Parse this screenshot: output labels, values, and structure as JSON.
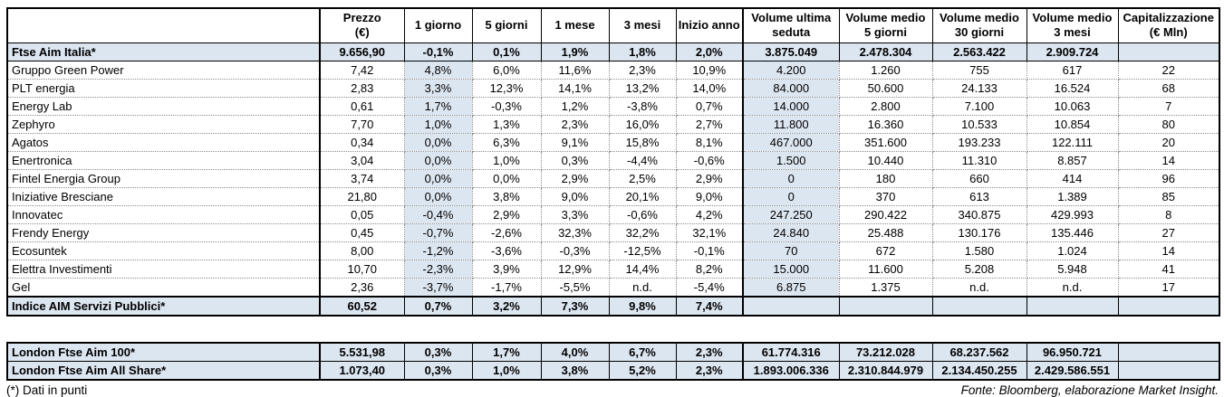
{
  "colors": {
    "highlight": "#dce6f1",
    "border": "#000000"
  },
  "main_table": {
    "headers": [
      {
        "lines": []
      },
      {
        "lines": [
          "Prezzo",
          "(€)"
        ]
      },
      {
        "lines": [
          "1 giorno"
        ]
      },
      {
        "lines": [
          "5 giorni"
        ]
      },
      {
        "lines": [
          "1 mese"
        ]
      },
      {
        "lines": [
          "3 mesi"
        ]
      },
      {
        "lines": [
          "Inizio anno"
        ]
      },
      {
        "lines": [
          "Volume ultima",
          "seduta"
        ]
      },
      {
        "lines": [
          "Volume medio",
          "5 giorni"
        ]
      },
      {
        "lines": [
          "Volume medio",
          "30 giorni"
        ]
      },
      {
        "lines": [
          "Volume medio",
          "3 mesi"
        ]
      },
      {
        "lines": [
          "Capitalizzazione",
          "(€ Mln)"
        ]
      }
    ],
    "rows": [
      {
        "type": "index",
        "cells": [
          "Ftse Aim Italia*",
          "9.656,90",
          "-0,1%",
          "0,1%",
          "1,9%",
          "1,8%",
          "2,0%",
          "3.875.049",
          "2.478.304",
          "2.563.422",
          "2.909.724",
          ""
        ]
      },
      {
        "type": "data",
        "cells": [
          "Gruppo Green Power",
          "7,42",
          "4,8%",
          "6,0%",
          "11,6%",
          "2,3%",
          "10,9%",
          "4.200",
          "1.260",
          "755",
          "617",
          "22"
        ]
      },
      {
        "type": "data",
        "cells": [
          "PLT energia",
          "2,83",
          "3,3%",
          "12,3%",
          "14,1%",
          "13,2%",
          "14,0%",
          "84.000",
          "50.600",
          "24.133",
          "16.524",
          "68"
        ]
      },
      {
        "type": "data",
        "cells": [
          "Energy Lab",
          "0,61",
          "1,7%",
          "-0,3%",
          "1,2%",
          "-3,8%",
          "0,7%",
          "14.000",
          "2.800",
          "7.100",
          "10.063",
          "7"
        ]
      },
      {
        "type": "data",
        "cells": [
          "Zephyro",
          "7,70",
          "1,0%",
          "1,3%",
          "2,3%",
          "16,0%",
          "2,7%",
          "11.800",
          "16.360",
          "10.533",
          "10.854",
          "80"
        ]
      },
      {
        "type": "data",
        "cells": [
          "Agatos",
          "0,34",
          "0,0%",
          "6,3%",
          "9,1%",
          "15,8%",
          "8,1%",
          "467.000",
          "351.600",
          "193.233",
          "122.111",
          "20"
        ]
      },
      {
        "type": "data",
        "cells": [
          "Enertronica",
          "3,04",
          "0,0%",
          "1,0%",
          "0,3%",
          "-4,4%",
          "-0,6%",
          "1.500",
          "10.440",
          "11.310",
          "8.857",
          "14"
        ]
      },
      {
        "type": "data",
        "cells": [
          "Fintel Energia Group",
          "3,74",
          "0,0%",
          "0,0%",
          "2,9%",
          "2,5%",
          "2,9%",
          "0",
          "180",
          "660",
          "414",
          "96"
        ]
      },
      {
        "type": "data",
        "cells": [
          "Iniziative Bresciane",
          "21,80",
          "0,0%",
          "3,8%",
          "9,0%",
          "20,1%",
          "9,0%",
          "0",
          "370",
          "613",
          "1.389",
          "85"
        ]
      },
      {
        "type": "data",
        "cells": [
          "Innovatec",
          "0,05",
          "-0,4%",
          "2,9%",
          "3,3%",
          "-0,6%",
          "4,2%",
          "247.250",
          "290.422",
          "340.875",
          "429.993",
          "8"
        ]
      },
      {
        "type": "data",
        "cells": [
          "Frendy Energy",
          "0,45",
          "-0,7%",
          "-2,6%",
          "32,3%",
          "32,2%",
          "32,1%",
          "24.840",
          "25.488",
          "130.176",
          "135.446",
          "27"
        ]
      },
      {
        "type": "data",
        "cells": [
          "Ecosuntek",
          "8,00",
          "-1,2%",
          "-3,6%",
          "-0,3%",
          "-12,5%",
          "-0,1%",
          "70",
          "672",
          "1.580",
          "1.024",
          "14"
        ]
      },
      {
        "type": "data",
        "cells": [
          "Elettra Investimenti",
          "10,70",
          "-2,3%",
          "3,9%",
          "12,9%",
          "14,4%",
          "8,2%",
          "15.000",
          "11.600",
          "5.208",
          "5.948",
          "41"
        ]
      },
      {
        "type": "data",
        "cells": [
          "Gel",
          "2,36",
          "-3,7%",
          "-1,7%",
          "-5,5%",
          "n.d.",
          "-5,4%",
          "6.875",
          "1.375",
          "n.d.",
          "n.d.",
          "17"
        ]
      },
      {
        "type": "summary",
        "cells": [
          "Indice AIM Servizi Pubblici*",
          "60,52",
          "0,7%",
          "3,2%",
          "7,3%",
          "9,8%",
          "7,4%",
          "",
          "",
          "",
          "",
          ""
        ]
      }
    ],
    "highlight_columns": [
      2,
      7
    ]
  },
  "london_table": {
    "rows": [
      {
        "type": "index",
        "cells": [
          "London Ftse Aim 100*",
          "5.531,98",
          "0,3%",
          "1,7%",
          "4,0%",
          "6,7%",
          "2,3%",
          "61.774.316",
          "73.212.028",
          "68.237.562",
          "96.950.721",
          ""
        ]
      },
      {
        "type": "index",
        "cells": [
          "London Ftse Aim All Share*",
          "1.073,40",
          "0,3%",
          "1,0%",
          "3,8%",
          "5,2%",
          "2,3%",
          "1.893.006.336",
          "2.310.844.979",
          "2.134.450.255",
          "2.429.586.551",
          ""
        ]
      }
    ]
  },
  "footer": {
    "note": "(*) Dati in punti",
    "source": "Fonte: Bloomberg, elaborazione Market Insight."
  }
}
